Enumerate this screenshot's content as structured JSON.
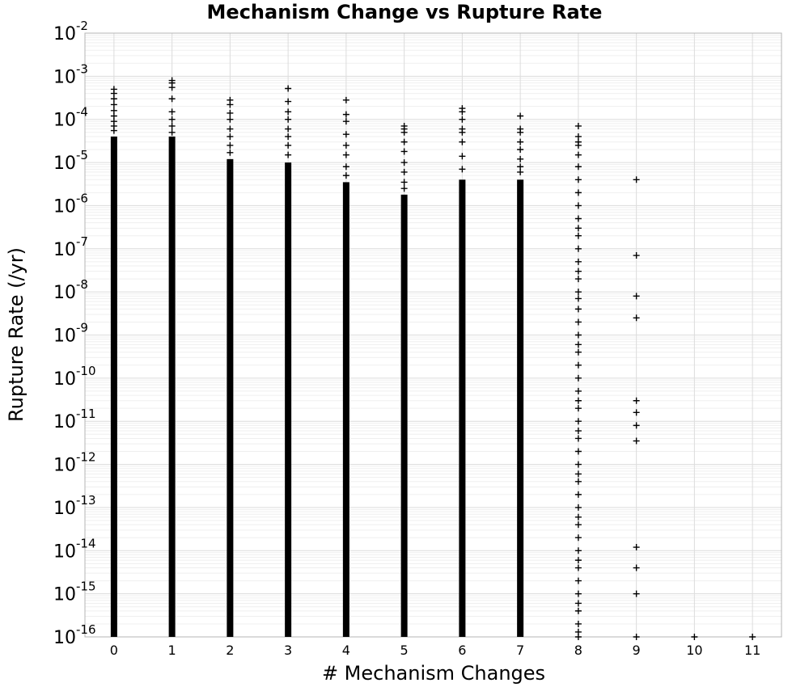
{
  "chart_data": {
    "type": "scatter",
    "title": "Mechanism Change vs Rupture Rate",
    "xlabel": "# Mechanism Changes",
    "ylabel": "Rupture Rate (/yr)",
    "xlim": [
      -0.5,
      11.5
    ],
    "ylim": [
      1e-16,
      0.01
    ],
    "y_scale": "log",
    "grid": true,
    "marker": "plus",
    "marker_color": "#000000",
    "x_ticks": [
      "0",
      "1",
      "2",
      "3",
      "4",
      "5",
      "6",
      "7",
      "8",
      "9",
      "10",
      "11"
    ],
    "y_ticks": [
      {
        "base": "10",
        "exp": "-16"
      },
      {
        "base": "10",
        "exp": "-15"
      },
      {
        "base": "10",
        "exp": "-14"
      },
      {
        "base": "10",
        "exp": "-13"
      },
      {
        "base": "10",
        "exp": "-12"
      },
      {
        "base": "10",
        "exp": "-11"
      },
      {
        "base": "10",
        "exp": "-10"
      },
      {
        "base": "10",
        "exp": "-9"
      },
      {
        "base": "10",
        "exp": "-8"
      },
      {
        "base": "10",
        "exp": "-7"
      },
      {
        "base": "10",
        "exp": "-6"
      },
      {
        "base": "10",
        "exp": "-5"
      },
      {
        "base": "10",
        "exp": "-4"
      },
      {
        "base": "10",
        "exp": "-3"
      },
      {
        "base": "10",
        "exp": "-2"
      }
    ],
    "columns": [
      {
        "x": 0,
        "dense_min": 1e-16,
        "dense_max": 4e-05,
        "sparse": [
          0.0005,
          0.0004,
          0.0003,
          0.00022,
          0.00016,
          0.00012,
          9e-05,
          7e-05,
          5.5e-05
        ]
      },
      {
        "x": 1,
        "dense_min": 1e-16,
        "dense_max": 4e-05,
        "sparse": [
          0.0008,
          0.0007,
          0.00055,
          0.0003,
          0.00015,
          0.0001,
          7e-05,
          5e-05
        ]
      },
      {
        "x": 2,
        "dense_min": 1e-16,
        "dense_max": 1.2e-05,
        "sparse": [
          0.00028,
          0.00022,
          0.00014,
          0.0001,
          6e-05,
          4e-05,
          2.5e-05,
          1.7e-05
        ]
      },
      {
        "x": 3,
        "dense_min": 1e-16,
        "dense_max": 1e-05,
        "sparse": [
          0.00052,
          0.00026,
          0.00015,
          0.0001,
          6e-05,
          4e-05,
          2.5e-05,
          1.5e-05
        ]
      },
      {
        "x": 4,
        "dense_min": 1e-16,
        "dense_max": 3.5e-06,
        "sparse": [
          0.00028,
          0.00013,
          9e-05,
          4.5e-05,
          2.5e-05,
          1.5e-05,
          8e-06,
          5e-06
        ]
      },
      {
        "x": 5,
        "dense_min": 1e-16,
        "dense_max": 1.8e-06,
        "sparse": [
          7e-05,
          6e-05,
          5e-05,
          3e-05,
          1.8e-05,
          1e-05,
          6e-06,
          3.5e-06,
          2.5e-06
        ]
      },
      {
        "x": 6,
        "dense_min": 1e-16,
        "dense_max": 4e-06,
        "sparse": [
          0.00018,
          0.00015,
          0.0001,
          6e-05,
          5e-05,
          3e-05,
          1.4e-05,
          7e-06
        ]
      },
      {
        "x": 7,
        "dense_min": 1e-16,
        "dense_max": 4e-06,
        "sparse": [
          0.00012,
          6e-05,
          5e-05,
          3e-05,
          2e-05,
          1.2e-05,
          8e-06,
          6e-06
        ]
      },
      {
        "x": 8,
        "dense_min": 1e-16,
        "dense_max": 1e-16,
        "sparse": [
          7e-05,
          4e-05,
          3e-05,
          2.5e-05,
          1.5e-05,
          8e-06,
          4e-06,
          2e-06,
          1e-06,
          5e-07,
          3e-07,
          2e-07,
          1e-07,
          5e-08,
          3e-08,
          2e-08,
          1e-08,
          7e-09,
          4e-09,
          2e-09,
          1e-09,
          6e-10,
          4e-10,
          2e-10,
          1e-10,
          5e-11,
          3e-11,
          2e-11,
          1e-11,
          6e-12,
          4e-12,
          2e-12,
          1e-12,
          6e-13,
          4e-13,
          2e-13,
          1e-13,
          6e-14,
          4e-14,
          2e-14,
          1e-14,
          6e-15,
          4e-15,
          2e-15,
          1e-15,
          6e-16,
          4e-16,
          2e-16,
          1.3e-16,
          1e-16
        ]
      },
      {
        "x": 9,
        "dense_min": 1e-16,
        "dense_max": 1e-16,
        "sparse": [
          4e-06,
          7e-08,
          8e-09,
          2.5e-09,
          3e-11,
          1.6e-11,
          8e-12,
          3.5e-12,
          1.2e-14,
          4e-15,
          1e-15,
          1e-16
        ]
      },
      {
        "x": 10,
        "dense_min": 1e-16,
        "dense_max": 1e-16,
        "sparse": [
          1e-16
        ]
      },
      {
        "x": 11,
        "dense_min": 1e-16,
        "dense_max": 1e-16,
        "sparse": [
          1e-16
        ]
      }
    ]
  }
}
